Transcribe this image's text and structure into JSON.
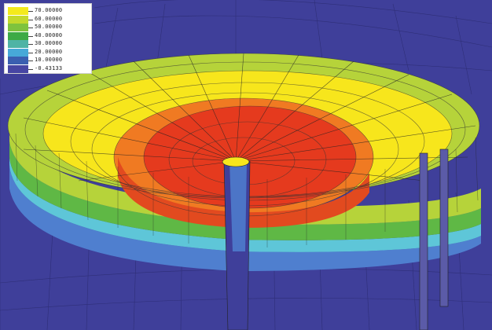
{
  "legend": {
    "levels": [
      {
        "label": "70.00000",
        "color": "#f4ea1c"
      },
      {
        "label": "60.00000",
        "color": "#c3d92c"
      },
      {
        "label": "50.00000",
        "color": "#7fc33d"
      },
      {
        "label": "40.00000",
        "color": "#3daa45"
      },
      {
        "label": "30.00000",
        "color": "#4fb4a5"
      },
      {
        "label": "20.00000",
        "color": "#47a9d8"
      },
      {
        "label": "10.00000",
        "color": "#3a5fb0"
      },
      {
        "label": "-0.43133",
        "color": "#4746a3"
      }
    ]
  },
  "colors": {
    "background": "#3f3f9a",
    "red": "#e53a1e",
    "orange": "#f07a22",
    "yellow": "#f7e61c",
    "lime": "#b6d33a",
    "green": "#5fb845",
    "cyan": "#5ec6d8",
    "blue": "#4f7fcf",
    "mesh": "#222222"
  }
}
